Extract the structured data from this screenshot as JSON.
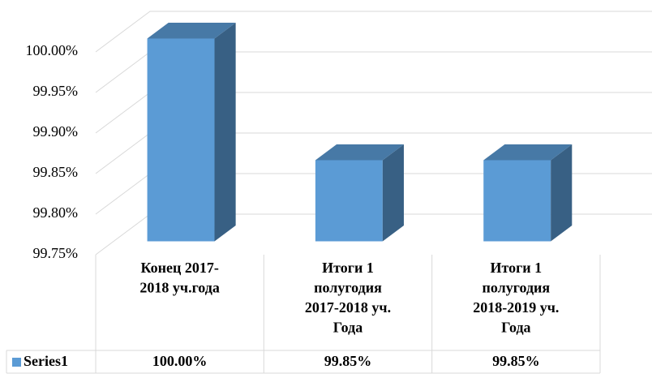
{
  "chart_data": {
    "type": "bar3d",
    "categories": [
      [
        "Конец 2017-",
        "2018 уч.года"
      ],
      [
        "Итоги 1",
        "полугодия",
        "2017-2018 уч.",
        "Года"
      ],
      [
        "Итоги 1",
        "полугодия",
        "2018-2019 уч.",
        "Года"
      ]
    ],
    "series": [
      {
        "name": "Series1",
        "color": "#5b9bd5",
        "values": [
          100.0,
          99.85,
          99.85
        ],
        "value_labels": [
          "100.00%",
          "99.85%",
          "99.85%"
        ]
      }
    ],
    "ylim": [
      99.75,
      100.0
    ],
    "yticks": [
      {
        "value": 99.75,
        "label": "99.75%"
      },
      {
        "value": 99.8,
        "label": "99.80%"
      },
      {
        "value": 99.85,
        "label": "99.85%"
      },
      {
        "value": 99.9,
        "label": "99.90%"
      },
      {
        "value": 99.95,
        "label": "99.95%"
      },
      {
        "value": 100.0,
        "label": "100.00%"
      }
    ],
    "grid": true,
    "data_table": true
  }
}
